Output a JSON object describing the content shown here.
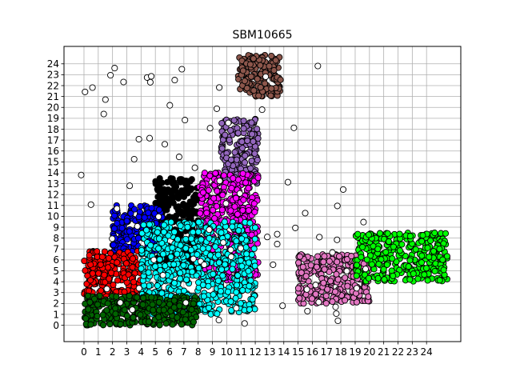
{
  "chart_data": {
    "type": "scatter",
    "title": "SBM10665",
    "xlabel": "",
    "ylabel": "",
    "xlim": [
      -1.4,
      26.4
    ],
    "ylim": [
      -1.5,
      25.6
    ],
    "grid": true,
    "x_ticks": [
      "0",
      "1",
      "2",
      "3",
      "4",
      "5",
      "6",
      "7",
      "8",
      "9",
      "10",
      "11",
      "12",
      "13",
      "14",
      "15",
      "16",
      "17",
      "18",
      "19",
      "20",
      "21",
      "22",
      "23",
      "24"
    ],
    "y_ticks": [
      "0",
      "1",
      "2",
      "3",
      "4",
      "5",
      "6",
      "7",
      "8",
      "9",
      "10",
      "11",
      "12",
      "13",
      "14",
      "15",
      "16",
      "17",
      "18",
      "19",
      "20",
      "21",
      "22",
      "23",
      "24"
    ],
    "marker_edge_color": "#000000",
    "clusters": [
      {
        "color": "#8c564b",
        "x_range": [
          10.8,
          13.8
        ],
        "y_range": [
          21.0,
          24.8
        ],
        "n": 160
      },
      {
        "color": "#9467bd",
        "x_range": [
          9.6,
          12.2
        ],
        "y_range": [
          13.0,
          19.0
        ],
        "n": 190
      },
      {
        "color": "#000000",
        "x_range": [
          5.0,
          8.0
        ],
        "y_range": [
          5.0,
          13.5
        ],
        "n": 260
      },
      {
        "color": "#0000ff",
        "x_range": [
          2.0,
          5.5
        ],
        "y_range": [
          6.5,
          11.0
        ],
        "n": 200
      },
      {
        "color": "#ff00ff",
        "x_range": [
          8.0,
          12.2
        ],
        "y_range": [
          4.0,
          14.0
        ],
        "n": 420
      },
      {
        "color": "#ff0000",
        "x_range": [
          0.0,
          4.0
        ],
        "y_range": [
          2.5,
          6.8
        ],
        "n": 200
      },
      {
        "color": "#00ffff",
        "x_range": [
          4.0,
          12.0
        ],
        "y_range": [
          1.0,
          9.5
        ],
        "n": 650
      },
      {
        "color": "#006400",
        "x_range": [
          0.0,
          8.0
        ],
        "y_range": [
          0.0,
          2.7
        ],
        "n": 340
      },
      {
        "color": "#e377c2",
        "x_range": [
          15.0,
          20.0
        ],
        "y_range": [
          2.0,
          6.5
        ],
        "n": 280
      },
      {
        "color": "#00ff00",
        "x_range": [
          19.0,
          25.5
        ],
        "y_range": [
          4.0,
          8.5
        ],
        "n": 320
      },
      {
        "color": "#ffffff",
        "x_range": [
          -0.5,
          20.0
        ],
        "y_range": [
          0.0,
          24.0
        ],
        "n": 80
      }
    ]
  }
}
